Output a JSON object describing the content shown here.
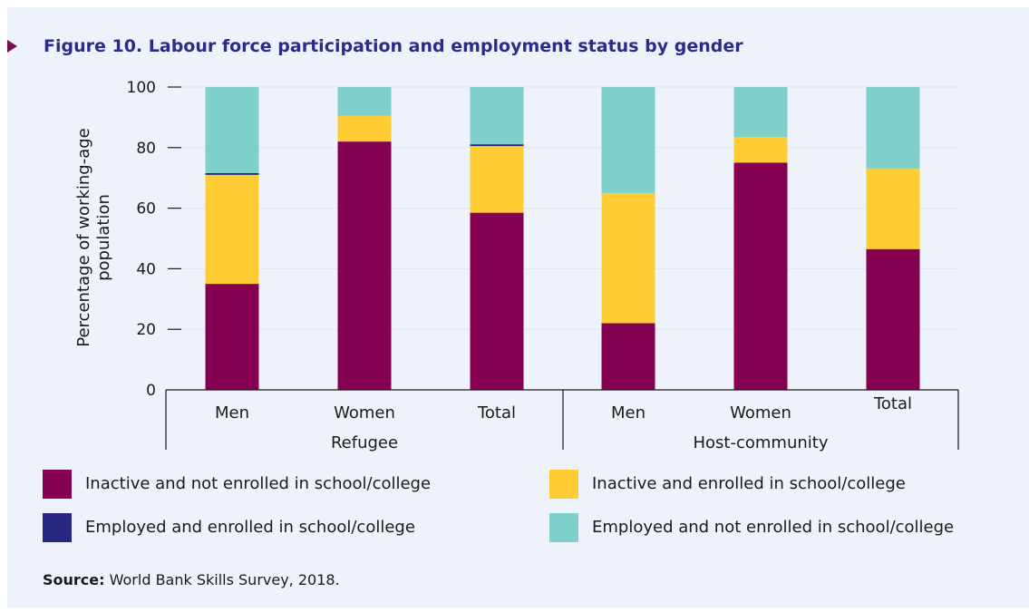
{
  "title": "Figure 10. Labour force participation and employment status by gender",
  "source": {
    "label": "Source:",
    "text": "World Bank Skills Survey, 2018."
  },
  "colors": {
    "background": "#eef3fb",
    "title": "#2b2b8a",
    "marker": "#7a0f57"
  },
  "chart_data": {
    "type": "bar",
    "stacked": true,
    "ylabel": "Percentage of working-age population",
    "ylabel_lines": [
      "Percentage of working-age",
      "population"
    ],
    "ylim": [
      0,
      100
    ],
    "yticks": [
      0,
      20,
      40,
      60,
      80,
      100
    ],
    "grid": true,
    "legend_position": "bottom",
    "categories": [
      "Men",
      "Women",
      "Total",
      "Men",
      "Women",
      "Total"
    ],
    "groups": [
      {
        "label": "Refugee",
        "categories": [
          "Men",
          "Women",
          "Total"
        ]
      },
      {
        "label": "Host-community",
        "categories": [
          "Men",
          "Women",
          "Total"
        ]
      }
    ],
    "series": [
      {
        "name": "Inactive and not enrolled in school/college",
        "color": "#850050",
        "values": [
          35,
          82,
          58.5,
          22,
          75,
          46.5
        ]
      },
      {
        "name": "Inactive and enrolled in school/college",
        "color": "#ffcc33",
        "values": [
          36,
          8.5,
          22,
          43,
          8.5,
          26.5
        ]
      },
      {
        "name": "Employed and enrolled in school/college",
        "color": "#272782",
        "values": [
          0.6,
          0,
          0.6,
          0,
          0,
          0
        ]
      },
      {
        "name": "Employed and not enrolled in school/college",
        "color": "#7fcfca",
        "values": [
          28.4,
          9.5,
          18.9,
          35,
          16.5,
          27
        ]
      }
    ]
  }
}
